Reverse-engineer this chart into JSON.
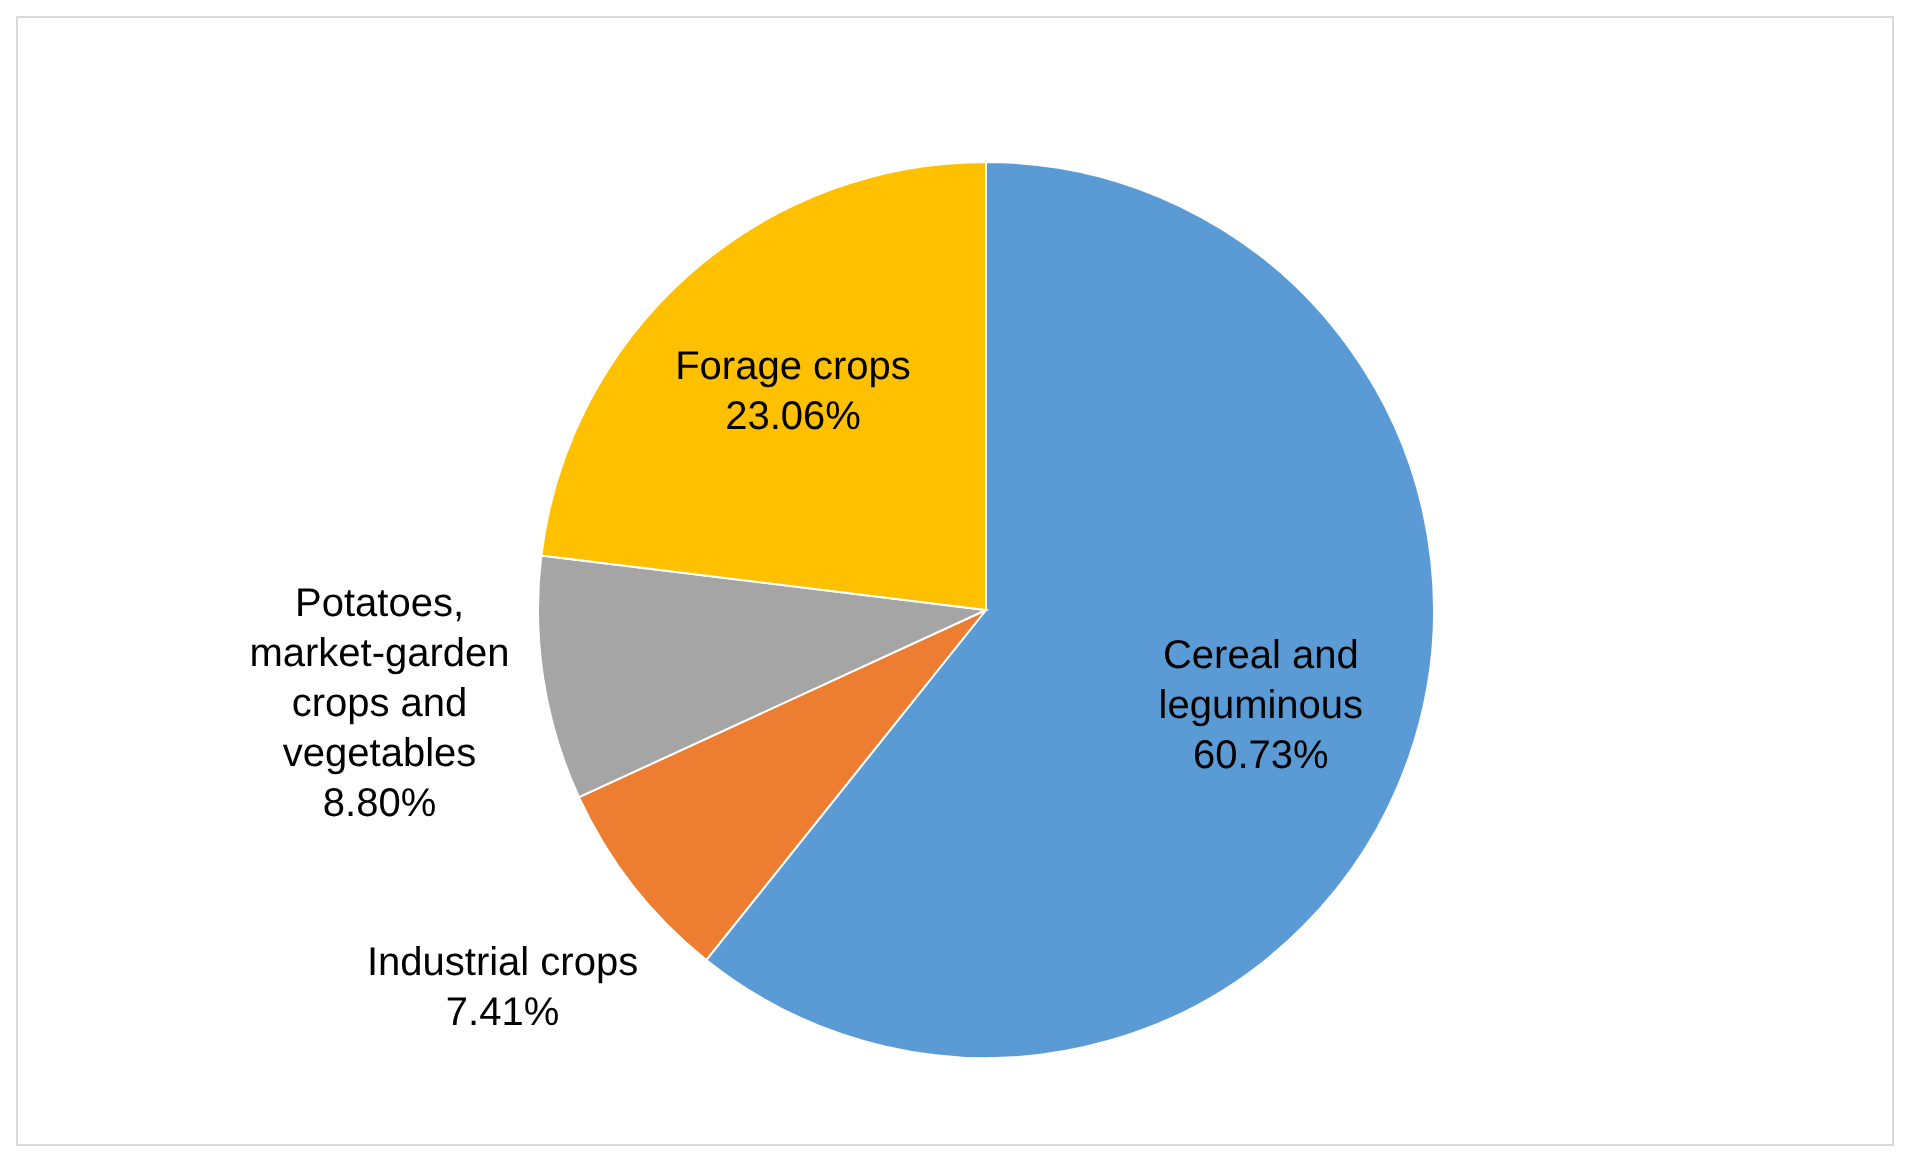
{
  "chart_data": {
    "type": "pie",
    "categories": [
      "Cereal and leguminous",
      "Industrial crops",
      "Potatoes, market-garden crops and vegetables",
      "Forage crops"
    ],
    "values": [
      60.73,
      7.41,
      8.8,
      23.06
    ],
    "colors": [
      "#5b9bd5",
      "#ed7d31",
      "#a5a5a5",
      "#ffc000"
    ],
    "value_labels": [
      "60.73%",
      "7.41%",
      "8.80%",
      "23.06%"
    ]
  }
}
